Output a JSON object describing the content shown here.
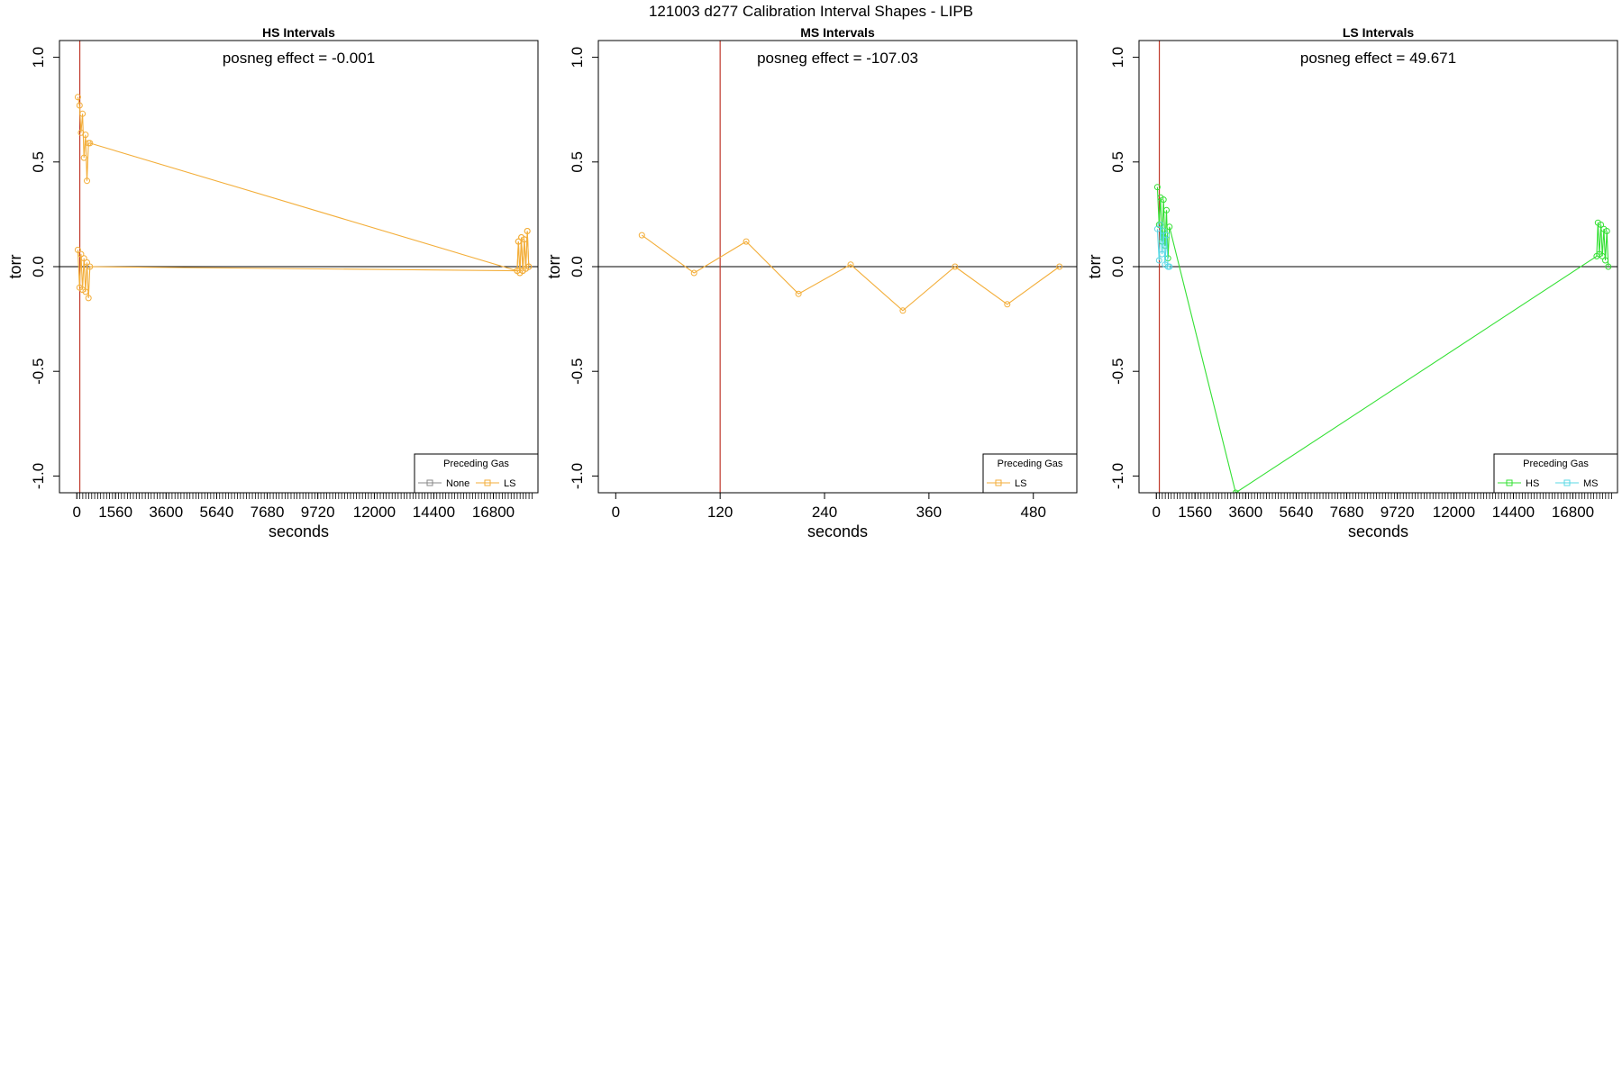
{
  "figure_title": "121003   d277   Calibration Interval Shapes - LIPB",
  "colors": {
    "orange": "#f3ae3a",
    "red_line": "#c0392b",
    "gray": "#888888",
    "green": "#33e033",
    "cyan": "#5ad9e6"
  },
  "chart_data": [
    {
      "type": "line",
      "title": "HS Intervals",
      "xlabel": "seconds",
      "ylabel": "torr",
      "annotation": "posneg effect = -0.001",
      "xlim": [
        -700,
        18600
      ],
      "ylim": [
        -1.08,
        1.08
      ],
      "x_ticks": [
        0,
        1560,
        3600,
        5640,
        7680,
        9720,
        12000,
        14400,
        16800
      ],
      "minor_ticks": {
        "start": 0,
        "end": 18400,
        "step": 120
      },
      "y_ticks": [
        -1.0,
        -0.5,
        0.0,
        0.5,
        1.0
      ],
      "y_tick_labels": [
        "-1.0",
        "-0.5",
        "0.0",
        "0.5",
        "1.0"
      ],
      "vline": 120,
      "hline": 0,
      "legend": {
        "title": "Preceding Gas",
        "entries": [
          {
            "label": "None",
            "color": "#888888"
          },
          {
            "label": "LS",
            "color": "#f3ae3a"
          }
        ]
      },
      "series": [
        {
          "color": "#f3ae3a",
          "x": [
            40,
            110,
            170,
            230,
            290,
            350,
            410,
            470,
            530,
            17760,
            17810,
            17870,
            17930,
            17990,
            18050,
            18110,
            18170,
            18230
          ],
          "y": [
            0.81,
            0.77,
            0.64,
            0.73,
            0.52,
            0.63,
            0.41,
            0.59,
            0.59,
            -0.02,
            0.12,
            -0.03,
            0.14,
            -0.02,
            0.13,
            -0.01,
            0.17,
            0.0
          ]
        },
        {
          "color": "#f3ae3a",
          "x": [
            40,
            110,
            170,
            230,
            290,
            350,
            410,
            470,
            530,
            17760,
            17810,
            17870,
            17930,
            17990,
            18050,
            18110,
            18170,
            18230
          ],
          "y": [
            0.08,
            -0.1,
            0.06,
            -0.11,
            0.04,
            -0.12,
            0.02,
            -0.15,
            0.0,
            -0.02,
            0.12,
            -0.03,
            0.14,
            -0.02,
            0.13,
            -0.01,
            0.17,
            0.0
          ]
        }
      ]
    },
    {
      "type": "line",
      "title": "MS Intervals",
      "xlabel": "seconds",
      "ylabel": "torr",
      "annotation": "posneg effect = -107.03",
      "xlim": [
        -20,
        530
      ],
      "ylim": [
        -1.08,
        1.08
      ],
      "x_ticks": [
        0,
        120,
        240,
        360,
        480
      ],
      "minor_ticks": null,
      "y_ticks": [
        -1.0,
        -0.5,
        0.0,
        0.5,
        1.0
      ],
      "y_tick_labels": [
        "-1.0",
        "-0.5",
        "0.0",
        "0.5",
        "1.0"
      ],
      "vline": 120,
      "hline": 0,
      "legend": {
        "title": "Preceding Gas",
        "entries": [
          {
            "label": "LS",
            "color": "#f3ae3a"
          }
        ]
      },
      "series": [
        {
          "color": "#f3ae3a",
          "x": [
            30,
            90,
            150,
            210,
            270,
            330,
            390,
            450,
            510
          ],
          "y": [
            0.15,
            -0.03,
            0.12,
            -0.13,
            0.01,
            -0.21,
            0.0,
            -0.18,
            0.0
          ]
        }
      ]
    },
    {
      "type": "line",
      "title": "LS Intervals",
      "xlabel": "seconds",
      "ylabel": "torr",
      "annotation": "posneg effect = 49.671",
      "xlim": [
        -700,
        18600
      ],
      "ylim": [
        -1.08,
        1.08
      ],
      "x_ticks": [
        0,
        1560,
        3600,
        5640,
        7680,
        9720,
        12000,
        14400,
        16800
      ],
      "minor_ticks": {
        "start": 0,
        "end": 18400,
        "step": 120
      },
      "y_ticks": [
        -1.0,
        -0.5,
        0.0,
        0.5,
        1.0
      ],
      "y_tick_labels": [
        "-1.0",
        "-0.5",
        "0.0",
        "0.5",
        "1.0"
      ],
      "vline": 120,
      "hline": 0,
      "legend": {
        "title": "Preceding Gas",
        "entries": [
          {
            "label": "HS",
            "color": "#33e033"
          },
          {
            "label": "MS",
            "color": "#5ad9e6"
          }
        ]
      },
      "series": [
        {
          "color": "#33e033",
          "x": [
            40,
            110,
            170,
            230,
            290,
            350,
            410,
            470,
            530,
            3200,
            17760,
            17810,
            17870,
            17930,
            17990,
            18050,
            18110,
            18170,
            18230
          ],
          "y": [
            0.38,
            0.2,
            0.33,
            0.12,
            0.32,
            0.1,
            0.27,
            0.04,
            0.19,
            -1.08,
            0.05,
            0.21,
            0.06,
            0.2,
            0.05,
            0.18,
            0.03,
            0.17,
            0.0
          ]
        },
        {
          "color": "#5ad9e6",
          "x": [
            40,
            110,
            170,
            230,
            290,
            350,
            410,
            470,
            530
          ],
          "y": [
            0.18,
            0.03,
            0.2,
            0.06,
            0.17,
            0.01,
            0.15,
            0.0,
            0.0
          ]
        }
      ]
    }
  ]
}
